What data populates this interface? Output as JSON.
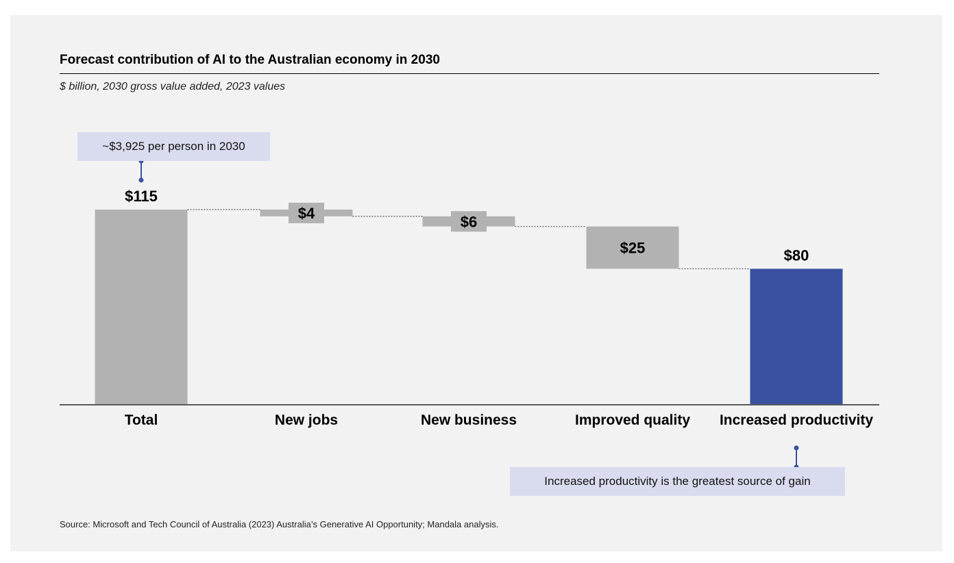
{
  "header": {
    "title": "Forecast contribution of AI to the Australian economy in 2030",
    "subtitle": "$ billion, 2030 gross value added, 2023 values"
  },
  "annotations": {
    "top": "~$3,925 per person in 2030",
    "bottom": "Increased productivity is the greatest source of gain"
  },
  "footer": {
    "source": "Source: Microsoft and Tech Council of Australia (2023) Australia’s Generative AI Opportunity; Mandala analysis."
  },
  "colors": {
    "bar_gray": "#b3b2b3",
    "bar_highlight": "#3951a0",
    "connector": "#555555",
    "callout_bg": "#d9dcee"
  },
  "chart_data": {
    "type": "bar",
    "subtype": "waterfall",
    "title": "Forecast contribution of AI to the Australian economy in 2030",
    "ylabel": "",
    "xlabel": "",
    "ylim": [
      0,
      115
    ],
    "grid": false,
    "legend": "none",
    "categories": [
      "Total",
      "New jobs",
      "New business",
      "Improved quality",
      "Increased productivity"
    ],
    "values": [
      115,
      4,
      6,
      25,
      80
    ],
    "value_labels": [
      "$115",
      "$4",
      "$6",
      "$25",
      "$80"
    ],
    "steps": [
      {
        "category": "Total",
        "base": 0,
        "top": 115,
        "kind": "total"
      },
      {
        "category": "New jobs",
        "base": 111,
        "top": 115,
        "kind": "step"
      },
      {
        "category": "New business",
        "base": 105,
        "top": 111,
        "kind": "step"
      },
      {
        "category": "Improved quality",
        "base": 80,
        "top": 105,
        "kind": "step"
      },
      {
        "category": "Increased productivity",
        "base": 0,
        "top": 80,
        "kind": "end"
      }
    ]
  }
}
